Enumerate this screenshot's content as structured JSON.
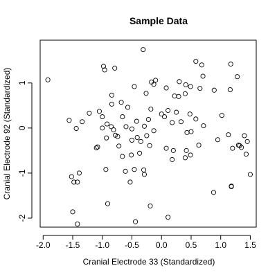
{
  "chart_data": {
    "type": "scatter",
    "title": "Sample Data",
    "xlabel": "Cranial Electrode 33 (Standardized)",
    "ylabel": "Cranial Electrode 92 (Standardized)",
    "xlim": [
      -2.05,
      1.6
    ],
    "ylim": [
      -2.2,
      1.95
    ],
    "x_ticks": [
      -2.0,
      -1.5,
      -1.0,
      -0.5,
      0.0,
      0.5,
      1.0,
      1.5
    ],
    "x_tick_labels": [
      "-2.0",
      "-1.5",
      "-1.0",
      "-0.5",
      "0.0",
      "0.5",
      "1.0",
      "1.5"
    ],
    "y_ticks": [
      -2,
      -1,
      0,
      1
    ],
    "y_tick_labels": [
      "-2",
      "-1",
      "0",
      "1"
    ],
    "grid": false,
    "legend": "none",
    "marker": "open-circle",
    "x": [
      -1.92,
      -0.31,
      -0.98,
      -0.96,
      -0.79,
      -1.0,
      -0.13,
      -0.17,
      -0.1,
      0.3,
      0.41,
      0.49,
      0.58,
      0.68,
      1.17,
      1.28,
      0.7,
      0.65,
      -0.46,
      -0.26,
      0.08,
      -0.84,
      -0.68,
      -0.57,
      -0.66,
      -0.84,
      0.22,
      0.29,
      0.4,
      0.25,
      0.89,
      1.02,
      1.16,
      -0.18,
      0.11,
      0.0,
      0.48,
      0.58,
      0.05,
      -0.42,
      -0.22,
      -1.05,
      -1.22,
      -1.34,
      -1.56,
      -0.92,
      -0.85,
      -0.29,
      0.18,
      0.33,
      -0.13,
      -0.5,
      -1.44,
      -1.0,
      -0.81,
      -0.6,
      0.71,
      0.43,
      0.5,
      0.63,
      0.95,
      -0.35,
      -0.5,
      -0.2,
      0.08,
      0.2,
      0.42,
      -0.72,
      -0.51,
      -1.1,
      -1.08,
      -1.42,
      -0.93,
      -0.78,
      -0.74,
      -0.41,
      -0.25,
      -0.37,
      -0.66,
      0.18,
      0.4,
      0.49,
      1.13,
      1.2,
      1.35,
      1.32,
      -1.52,
      -1.39,
      -1.48,
      -0.61,
      -0.46,
      -0.3,
      -0.53,
      -0.94,
      0.88,
      1.18,
      1.18,
      1.3,
      1.4,
      1.45,
      1.5,
      1.43,
      -0.29,
      -0.19,
      0.11,
      -0.91,
      -0.44,
      -1.42,
      -1.5
    ],
    "y": [
      1.07,
      1.74,
      1.37,
      1.29,
      1.33,
      0.25,
      0.97,
      1.02,
      1.06,
      1.03,
      0.96,
      0.92,
      1.48,
      1.4,
      1.42,
      1.14,
      1.15,
      0.88,
      0.92,
      0.77,
      0.89,
      0.73,
      0.57,
      0.46,
      0.25,
      0.53,
      0.71,
      0.7,
      0.76,
      0.35,
      0.84,
      0.28,
      0.85,
      0.42,
      0.39,
      0.31,
      0.31,
      0.2,
      0.25,
      0.15,
      0.19,
      0.37,
      0.33,
      0.14,
      0.17,
      0.09,
      0.03,
      0.04,
      0.12,
      0.14,
      -0.06,
      -0.02,
      -0.01,
      0.0,
      -0.04,
      0.03,
      0.05,
      -0.1,
      -0.08,
      -0.38,
      -0.26,
      -0.3,
      -0.27,
      -0.39,
      -0.45,
      -0.5,
      -0.5,
      -0.4,
      -0.6,
      -0.44,
      -0.42,
      -1.2,
      -0.22,
      -0.16,
      -0.19,
      -0.21,
      -0.17,
      -0.56,
      -0.63,
      -0.7,
      -0.66,
      -0.6,
      -0.15,
      -0.45,
      -0.43,
      -0.39,
      -1.08,
      -1.0,
      -1.2,
      -0.96,
      -0.92,
      -0.93,
      -1.2,
      -0.92,
      -1.43,
      -1.29,
      -1.3,
      -0.38,
      -0.17,
      -0.3,
      -1.03,
      -0.58,
      -1.03,
      -1.73,
      -1.98,
      -1.68,
      -2.08,
      -2.13,
      -1.86
    ]
  }
}
